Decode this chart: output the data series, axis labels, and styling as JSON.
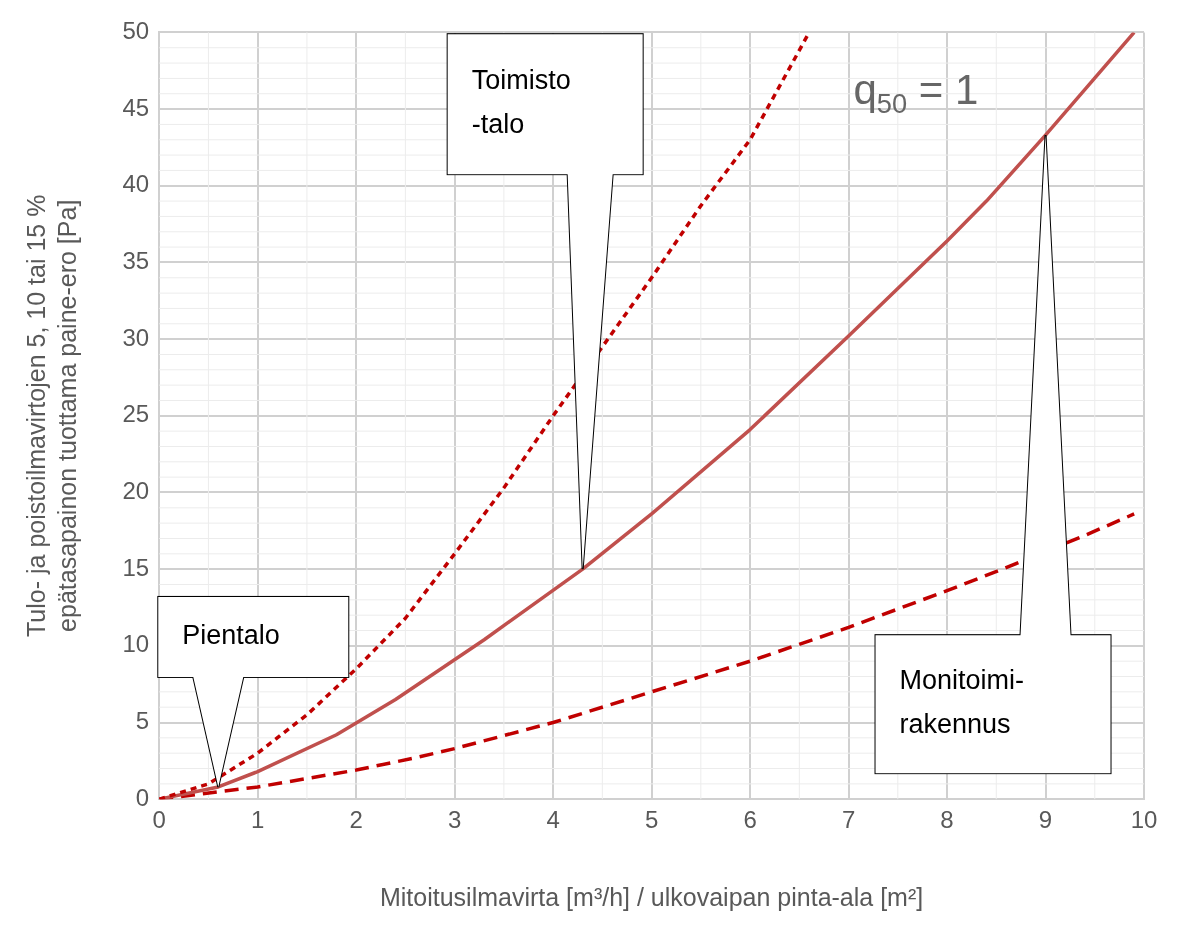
{
  "chart_data": {
    "type": "line",
    "xlabel": "Mitoitusilmavirta [m³/h] / ulkovaipan pinta-ala [m²]",
    "ylabel": "Tulo- ja poistoilmavirtojen 5, 10 tai 15 %\nepätasapainon tuottama paine-ero [Pa]",
    "xlim": [
      0,
      10
    ],
    "xticks": [
      0,
      1,
      2,
      3,
      4,
      5,
      6,
      7,
      8,
      9,
      10
    ],
    "ylim": [
      0,
      50
    ],
    "yticks": [
      0,
      5,
      10,
      15,
      20,
      25,
      30,
      35,
      40,
      45,
      50
    ],
    "grid": true,
    "legend": false,
    "marker": "none",
    "series": [
      {
        "color": "#c00000",
        "line_style": "dotted",
        "x": [
          0,
          0.5,
          1,
          1.5,
          2,
          2.5,
          3,
          3.5,
          4,
          4.5,
          5,
          5.5,
          6,
          6.6
        ],
        "values": [
          0,
          1,
          3,
          5.5,
          8.5,
          11.8,
          16,
          20.3,
          25,
          29.5,
          34,
          38.7,
          43,
          50
        ]
      },
      {
        "color": "#c0504d",
        "line_style": "solid",
        "x": [
          0,
          0.6,
          1,
          1.8,
          2.4,
          3.3,
          4.3,
          5,
          6,
          7,
          8,
          8.4,
          9,
          9.9
        ],
        "values": [
          0,
          0.8,
          1.8,
          4.2,
          6.5,
          10.4,
          15,
          18.6,
          24.1,
          30.2,
          36.4,
          39,
          43.3,
          50
        ]
      },
      {
        "color": "#c00000",
        "line_style": "dashed",
        "x": [
          0,
          1,
          2,
          2.6,
          3,
          4,
          5,
          6,
          7,
          8,
          8.6,
          9.4,
          9.9
        ],
        "values": [
          0,
          0.8,
          1.9,
          2.7,
          3.3,
          5,
          7,
          9,
          11.2,
          13.6,
          15.1,
          17.2,
          18.6
        ]
      }
    ],
    "annotations": [
      {
        "text": "Pientalo",
        "x": 0.6,
        "y": 0.8
      },
      {
        "text": "Toimisto\n-talo",
        "x": 4.3,
        "y": 15
      },
      {
        "text": "Monitoimi-\nrakennus",
        "x": 9,
        "y": 43.3
      },
      "q$_{50}$ = 1"
    ]
  }
}
